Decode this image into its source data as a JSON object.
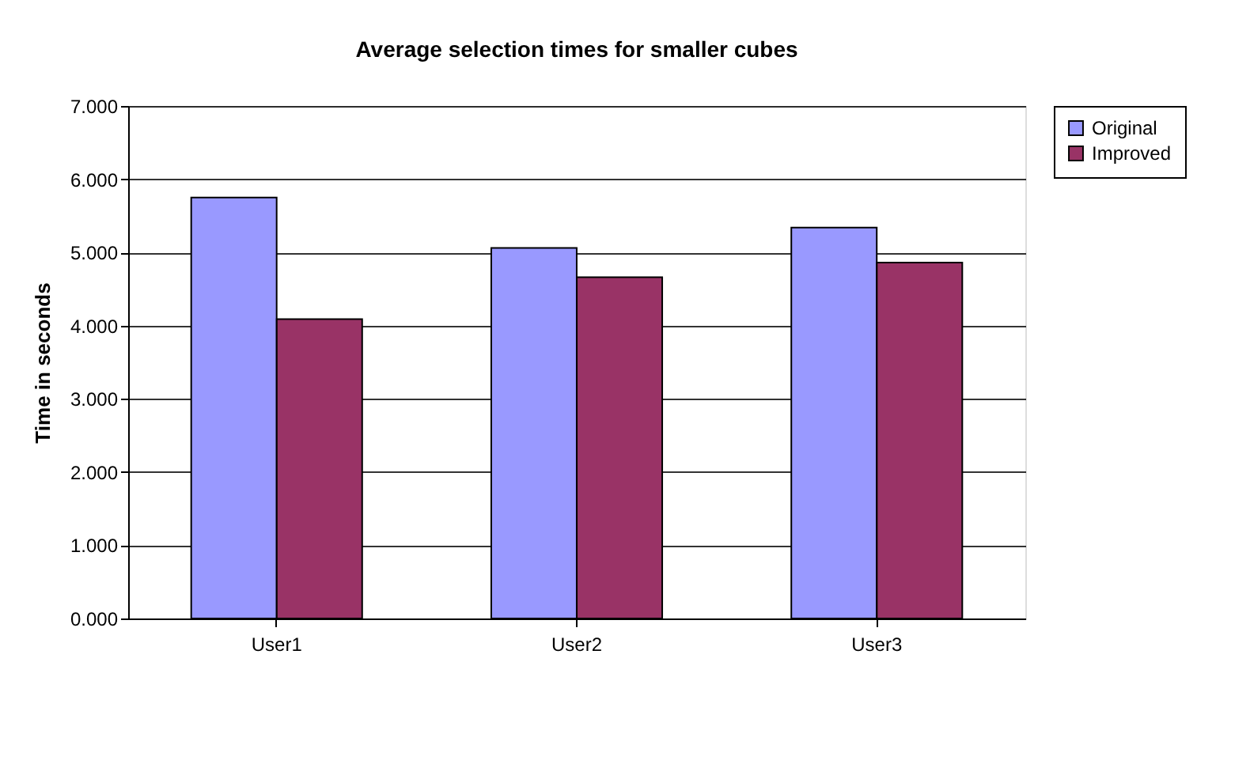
{
  "chart_data": {
    "type": "bar",
    "title": "Average selection times for smaller cubes",
    "ylabel": "Time in seconds",
    "categories": [
      "User1",
      "User2",
      "User3"
    ],
    "series": [
      {
        "name": "Original",
        "color": "#9999ff",
        "values": [
          5.75,
          5.06,
          5.34
        ]
      },
      {
        "name": "Improved",
        "color": "#993366",
        "values": [
          4.09,
          4.66,
          4.86
        ]
      }
    ],
    "ylim": [
      0,
      7
    ],
    "yticks": [
      {
        "value": 0,
        "label": "0.000"
      },
      {
        "value": 1,
        "label": "1.000"
      },
      {
        "value": 2,
        "label": "2.000"
      },
      {
        "value": 3,
        "label": "3.000"
      },
      {
        "value": 4,
        "label": "4.000"
      },
      {
        "value": 5,
        "label": "5.000"
      },
      {
        "value": 6,
        "label": "6.000"
      },
      {
        "value": 7,
        "label": "7.000"
      }
    ],
    "grid": "y",
    "legend": "right"
  }
}
